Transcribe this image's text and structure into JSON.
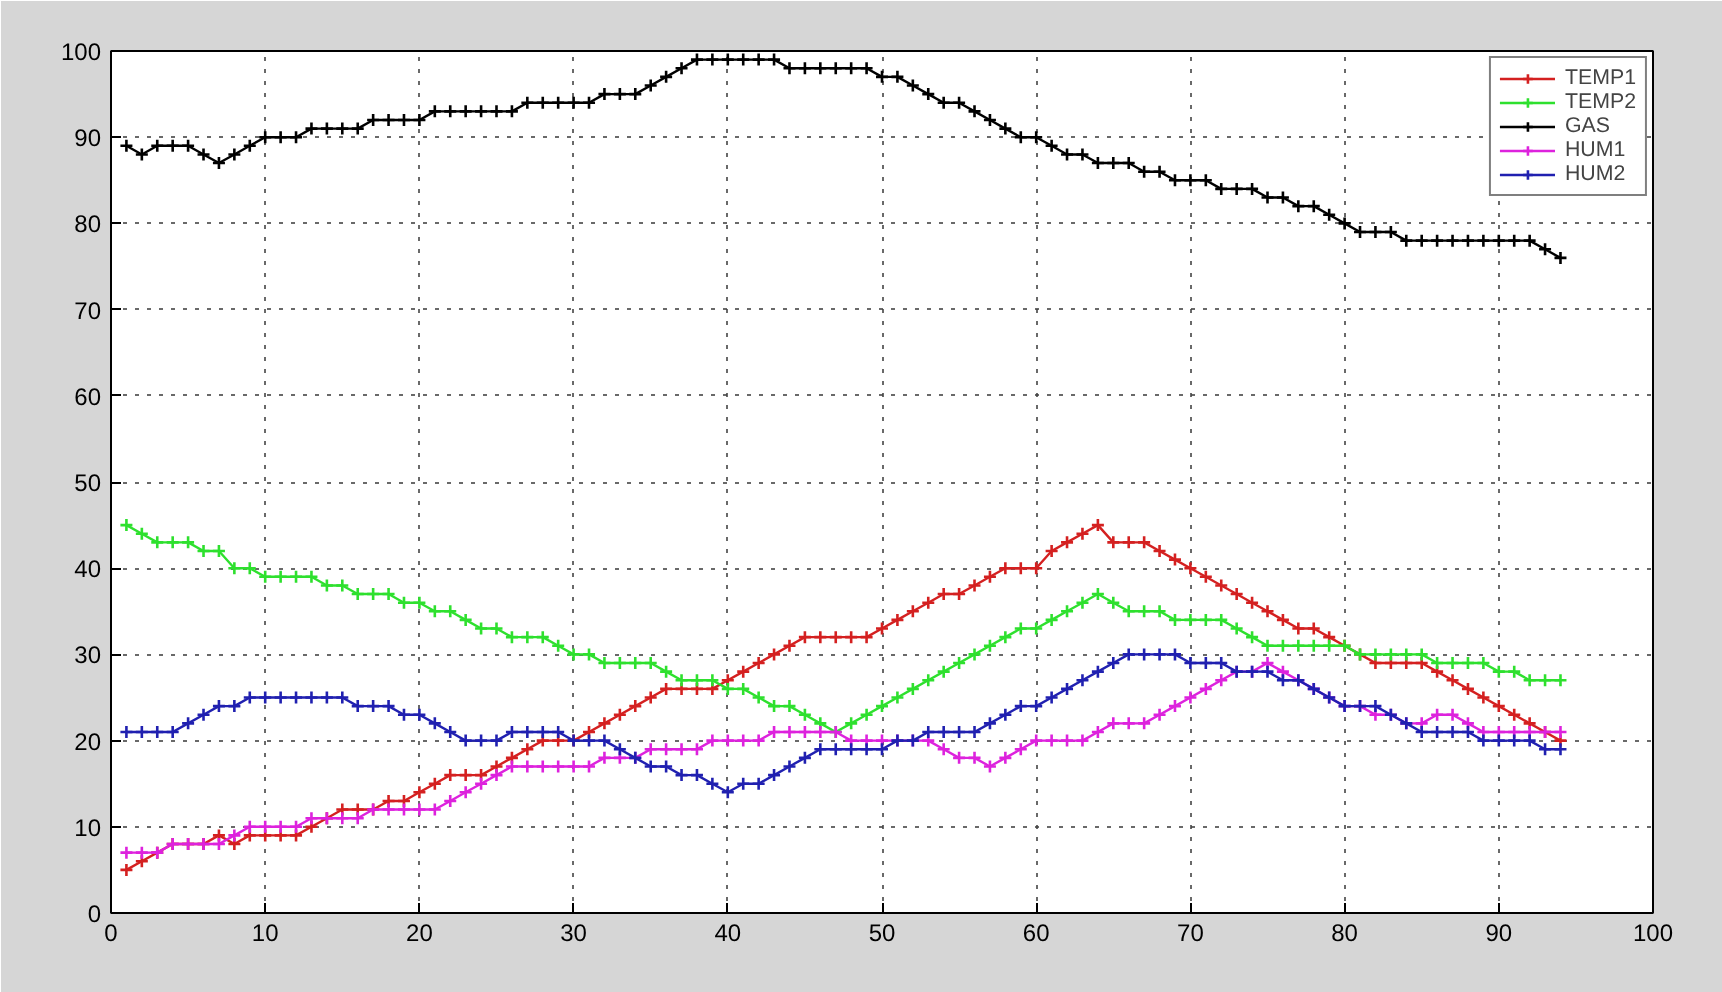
{
  "chart_data": {
    "type": "line",
    "x": [
      1,
      2,
      3,
      4,
      5,
      6,
      7,
      8,
      9,
      10,
      11,
      12,
      13,
      14,
      15,
      16,
      17,
      18,
      19,
      20,
      21,
      22,
      23,
      24,
      25,
      26,
      27,
      28,
      29,
      30,
      31,
      32,
      33,
      34,
      35,
      36,
      37,
      38,
      39,
      40,
      41,
      42,
      43,
      44,
      45,
      46,
      47,
      48,
      49,
      50,
      51,
      52,
      53,
      54,
      55,
      56,
      57,
      58,
      59,
      60,
      61,
      62,
      63,
      64,
      65,
      66,
      67,
      68,
      69,
      70,
      71,
      72,
      73,
      74,
      75,
      76,
      77,
      78,
      79,
      80,
      81,
      82,
      83,
      84,
      85,
      86,
      87,
      88,
      89,
      90,
      91,
      92,
      93,
      94
    ],
    "series": [
      {
        "name": "TEMP1",
        "color": "#d42020",
        "values": [
          5,
          6,
          7,
          8,
          8,
          8,
          9,
          8,
          9,
          9,
          9,
          9,
          10,
          11,
          12,
          12,
          12,
          13,
          13,
          14,
          15,
          16,
          16,
          16,
          17,
          18,
          19,
          20,
          20,
          20,
          21,
          22,
          23,
          24,
          25,
          26,
          26,
          26,
          26,
          27,
          28,
          29,
          30,
          31,
          32,
          32,
          32,
          32,
          32,
          33,
          34,
          35,
          36,
          37,
          37,
          38,
          39,
          40,
          40,
          40,
          42,
          43,
          44,
          45,
          43,
          43,
          43,
          42,
          41,
          40,
          39,
          38,
          37,
          36,
          35,
          34,
          33,
          33,
          32,
          31,
          30,
          29,
          29,
          29,
          29,
          28,
          27,
          26,
          25,
          24,
          23,
          22,
          21,
          20
        ]
      },
      {
        "name": "TEMP2",
        "color": "#2ee02e",
        "values": [
          45,
          44,
          43,
          43,
          43,
          42,
          42,
          40,
          40,
          39,
          39,
          39,
          39,
          38,
          38,
          37,
          37,
          37,
          36,
          36,
          35,
          35,
          34,
          33,
          33,
          32,
          32,
          32,
          31,
          30,
          30,
          29,
          29,
          29,
          29,
          28,
          27,
          27,
          27,
          26,
          26,
          25,
          24,
          24,
          23,
          22,
          21,
          22,
          23,
          24,
          25,
          26,
          27,
          28,
          29,
          30,
          31,
          32,
          33,
          33,
          34,
          35,
          36,
          37,
          36,
          35,
          35,
          35,
          34,
          34,
          34,
          34,
          33,
          32,
          31,
          31,
          31,
          31,
          31,
          31,
          30,
          30,
          30,
          30,
          30,
          29,
          29,
          29,
          29,
          28,
          28,
          27,
          27,
          27
        ]
      },
      {
        "name": "GAS",
        "color": "#000000",
        "values": [
          89,
          88,
          89,
          89,
          89,
          88,
          87,
          88,
          89,
          90,
          90,
          90,
          91,
          91,
          91,
          91,
          92,
          92,
          92,
          92,
          93,
          93,
          93,
          93,
          93,
          93,
          94,
          94,
          94,
          94,
          94,
          95,
          95,
          95,
          96,
          97,
          98,
          99,
          99,
          99,
          99,
          99,
          99,
          98,
          98,
          98,
          98,
          98,
          98,
          97,
          97,
          96,
          95,
          94,
          94,
          93,
          92,
          91,
          90,
          90,
          89,
          88,
          88,
          87,
          87,
          87,
          86,
          86,
          85,
          85,
          85,
          84,
          84,
          84,
          83,
          83,
          82,
          82,
          81,
          80,
          79,
          79,
          79,
          78,
          78,
          78,
          78,
          78,
          78,
          78,
          78,
          78,
          77,
          76
        ]
      },
      {
        "name": "HUM1",
        "color": "#dd22dd",
        "values": [
          7,
          7,
          7,
          8,
          8,
          8,
          8,
          9,
          10,
          10,
          10,
          10,
          11,
          11,
          11,
          11,
          12,
          12,
          12,
          12,
          12,
          13,
          14,
          15,
          16,
          17,
          17,
          17,
          17,
          17,
          17,
          18,
          18,
          18,
          19,
          19,
          19,
          19,
          20,
          20,
          20,
          20,
          21,
          21,
          21,
          21,
          21,
          20,
          20,
          20,
          20,
          20,
          20,
          19,
          18,
          18,
          17,
          18,
          19,
          20,
          20,
          20,
          20,
          21,
          22,
          22,
          22,
          23,
          24,
          25,
          26,
          27,
          28,
          28,
          29,
          28,
          27,
          26,
          25,
          24,
          24,
          23,
          23,
          22,
          22,
          23,
          23,
          22,
          21,
          21,
          21,
          21,
          21,
          21
        ]
      },
      {
        "name": "HUM2",
        "color": "#2020b0",
        "values": [
          21,
          21,
          21,
          21,
          22,
          23,
          24,
          24,
          25,
          25,
          25,
          25,
          25,
          25,
          25,
          24,
          24,
          24,
          23,
          23,
          22,
          21,
          20,
          20,
          20,
          21,
          21,
          21,
          21,
          20,
          20,
          20,
          19,
          18,
          17,
          17,
          16,
          16,
          15,
          14,
          15,
          15,
          16,
          17,
          18,
          19,
          19,
          19,
          19,
          19,
          20,
          20,
          21,
          21,
          21,
          21,
          22,
          23,
          24,
          24,
          25,
          26,
          27,
          28,
          29,
          30,
          30,
          30,
          30,
          29,
          29,
          29,
          28,
          28,
          28,
          27,
          27,
          26,
          25,
          24,
          24,
          24,
          23,
          22,
          21,
          21,
          21,
          21,
          20,
          20,
          20,
          20,
          19,
          19
        ]
      }
    ],
    "xlim": [
      0,
      100
    ],
    "xticks": [
      0,
      10,
      20,
      30,
      40,
      50,
      60,
      70,
      80,
      90,
      100
    ],
    "ylim": [
      0,
      100
    ],
    "yticks": [
      0,
      10,
      20,
      30,
      40,
      50,
      60,
      70,
      80,
      90,
      100
    ],
    "grid": true,
    "legend": "top right",
    "marker": "cross",
    "line_style": "solid"
  }
}
